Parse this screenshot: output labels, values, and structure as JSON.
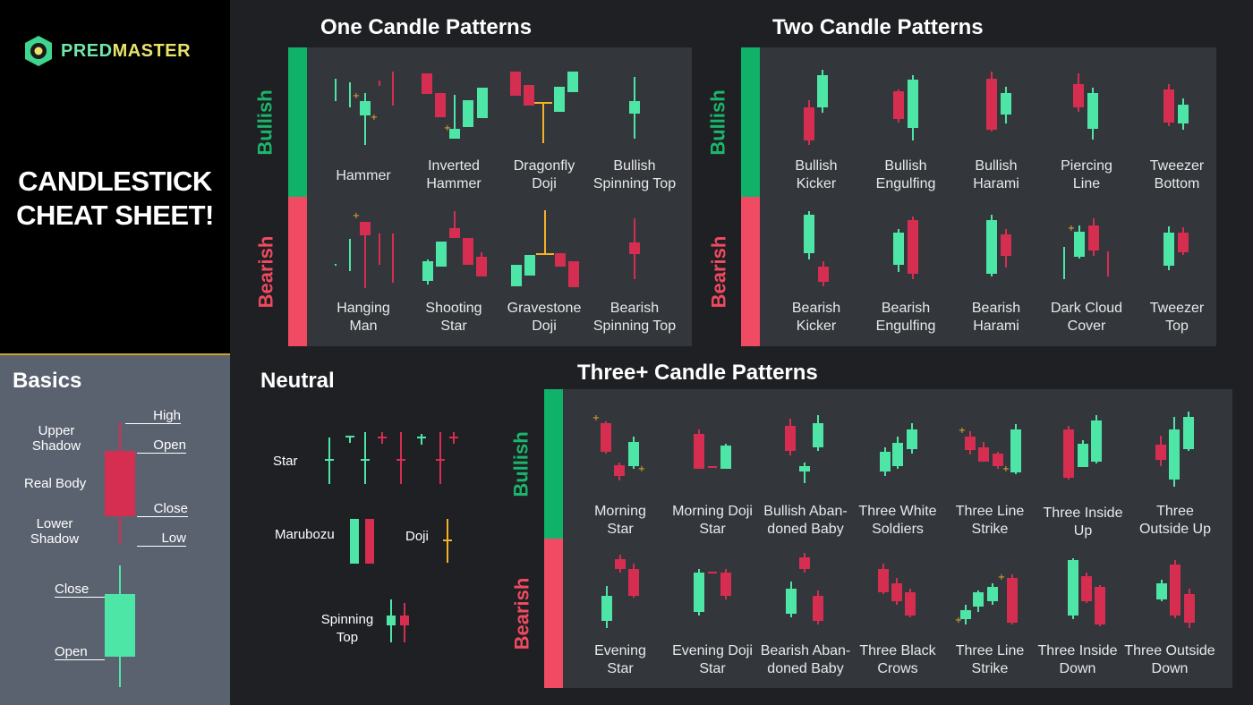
{
  "brand": {
    "part1": "PRED",
    "part2": "MASTER"
  },
  "title": {
    "line1": "CANDLESTICK",
    "line2": "CHEAT SHEET!"
  },
  "colors": {
    "bull": "#4ee6a6",
    "bear": "#d62e51",
    "doji": "#f3b228",
    "bull_tag": "#10b26a",
    "bear_tag": "#f04b63",
    "panel": "#33363b"
  },
  "sections": {
    "one": "One Candle Patterns",
    "two": "Two Candle Patterns",
    "three": "Three+ Candle Patterns",
    "neutral": "Neutral",
    "basics": "Basics"
  },
  "tags": {
    "bullish": "Bullish",
    "bearish": "Bearish"
  },
  "one_bull": [
    {
      "l1": "Hammer",
      "l2": ""
    },
    {
      "l1": "Inverted",
      "l2": "Hammer"
    },
    {
      "l1": "Dragonfly",
      "l2": "Doji"
    },
    {
      "l1": "Bullish",
      "l2": "Spinning Top"
    }
  ],
  "one_bear": [
    {
      "l1": "Hanging",
      "l2": "Man"
    },
    {
      "l1": "Shooting",
      "l2": "Star"
    },
    {
      "l1": "Gravestone",
      "l2": "Doji"
    },
    {
      "l1": "Bearish",
      "l2": "Spinning Top"
    }
  ],
  "two_bull": [
    {
      "l1": "Bullish",
      "l2": "Kicker"
    },
    {
      "l1": "Bullish",
      "l2": "Engulfing"
    },
    {
      "l1": "Bullish",
      "l2": "Harami"
    },
    {
      "l1": "Piercing",
      "l2": "Line"
    },
    {
      "l1": "Tweezer",
      "l2": "Bottom"
    }
  ],
  "two_bear": [
    {
      "l1": "Bearish",
      "l2": "Kicker"
    },
    {
      "l1": "Bearish",
      "l2": "Engulfing"
    },
    {
      "l1": "Bearish",
      "l2": "Harami"
    },
    {
      "l1": "Dark Cloud",
      "l2": "Cover"
    },
    {
      "l1": "Tweezer",
      "l2": "Top"
    }
  ],
  "three_bull": [
    {
      "l1": "Morning",
      "l2": "Star"
    },
    {
      "l1": "Morning Doji",
      "l2": "Star"
    },
    {
      "l1": "Bullish Aban-",
      "l2": "doned Baby"
    },
    {
      "l1": "Three White",
      "l2": "Soldiers"
    },
    {
      "l1": "Three Line",
      "l2": "Strike"
    },
    {
      "l1": "Three Inside",
      "l2": "Up"
    },
    {
      "l1": "Three",
      "l2": "Outside Up"
    }
  ],
  "three_bear": [
    {
      "l1": "Evening",
      "l2": "Star"
    },
    {
      "l1": "Evening Doji",
      "l2": "Star"
    },
    {
      "l1": "Bearish Aban-",
      "l2": "doned Baby"
    },
    {
      "l1": "Three Black",
      "l2": "Crows"
    },
    {
      "l1": "Three Line",
      "l2": "Strike"
    },
    {
      "l1": "Three Inside",
      "l2": "Down"
    },
    {
      "l1": "Three Outside",
      "l2": "Down"
    }
  ],
  "neutral": {
    "star": "Star",
    "marubozu": "Marubozu",
    "doji": "Doji",
    "spinning_top_1": "Spinning",
    "spinning_top_2": "Top"
  },
  "basics": {
    "upper_shadow_1": "Upper",
    "upper_shadow_2": "Shadow",
    "real_body": "Real Body",
    "lower_shadow_1": "Lower",
    "lower_shadow_2": "Shadow",
    "high": "High",
    "open": "Open",
    "close": "Close",
    "low": "Low",
    "close2": "Close",
    "open2": "Open"
  }
}
